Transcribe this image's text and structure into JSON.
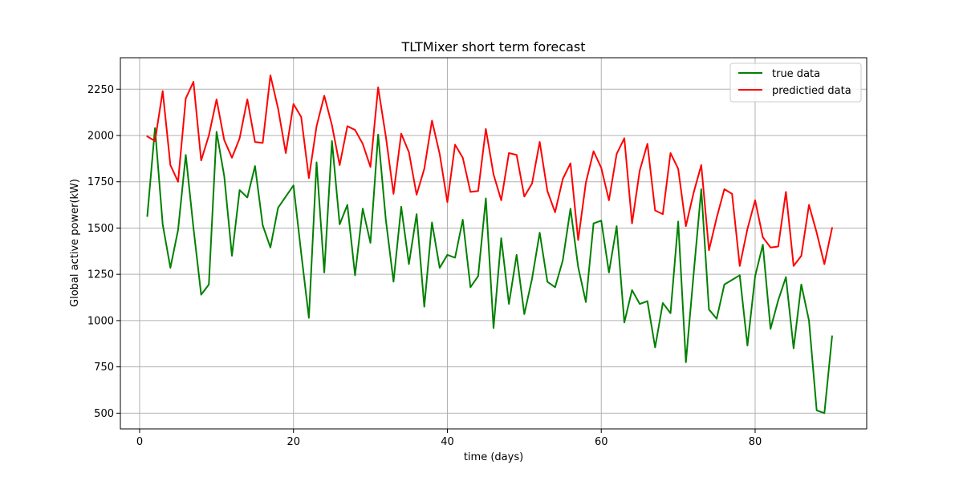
{
  "chart_data": {
    "type": "line",
    "title": "TLTMixer short term forecast",
    "xlabel": "time (days)",
    "ylabel": "Global active power(kW)",
    "xlim": [
      -2.5,
      94.5
    ],
    "ylim": [
      415,
      2420
    ],
    "xticks": [
      0,
      20,
      40,
      60,
      80
    ],
    "yticks": [
      500,
      750,
      1000,
      1250,
      1500,
      1750,
      2000,
      2250
    ],
    "grid": true,
    "legend_position": "top-right",
    "x": [
      1,
      2,
      3,
      4,
      5,
      6,
      7,
      8,
      9,
      10,
      11,
      12,
      13,
      14,
      15,
      16,
      17,
      18,
      19,
      20,
      21,
      22,
      23,
      24,
      25,
      26,
      27,
      28,
      29,
      30,
      31,
      32,
      33,
      34,
      35,
      36,
      37,
      38,
      39,
      40,
      41,
      42,
      43,
      44,
      45,
      46,
      47,
      48,
      49,
      50,
      51,
      52,
      53,
      54,
      55,
      56,
      57,
      58,
      59,
      60,
      61,
      62,
      63,
      64,
      65,
      66,
      67,
      68,
      69,
      70,
      71,
      72,
      73,
      74,
      75,
      76,
      77,
      78,
      79,
      80,
      81,
      82,
      83,
      84,
      85,
      86,
      87,
      88,
      89,
      90
    ],
    "series": [
      {
        "name": "true data",
        "color": "#008000",
        "values": [
          1565,
          2040,
          1520,
          1285,
          1490,
          1895,
          1500,
          1140,
          1195,
          2020,
          1780,
          1350,
          1705,
          1665,
          1835,
          1515,
          1395,
          1610,
          1670,
          1730,
          1365,
          1015,
          1855,
          1260,
          1970,
          1520,
          1625,
          1245,
          1605,
          1420,
          2005,
          1545,
          1210,
          1615,
          1305,
          1575,
          1075,
          1530,
          1285,
          1355,
          1340,
          1545,
          1180,
          1240,
          1660,
          960,
          1445,
          1090,
          1355,
          1035,
          1225,
          1475,
          1210,
          1180,
          1325,
          1605,
          1290,
          1100,
          1525,
          1540,
          1260,
          1510,
          990,
          1165,
          1090,
          1105,
          855,
          1095,
          1040,
          1535,
          775,
          1250,
          1710,
          1060,
          1010,
          1195,
          1220,
          1245,
          865,
          1240,
          1410,
          955,
          1110,
          1235,
          850,
          1195,
          1000,
          515,
          500,
          915
        ]
      },
      {
        "name": "predictied data",
        "color": "#ff0000",
        "values": [
          1995,
          1970,
          2240,
          1840,
          1750,
          2200,
          2290,
          1865,
          2000,
          2195,
          1975,
          1880,
          1985,
          2195,
          1965,
          1960,
          2325,
          2145,
          1905,
          2170,
          2100,
          1770,
          2050,
          2215,
          2055,
          1840,
          2050,
          2030,
          1955,
          1830,
          2260,
          1995,
          1685,
          2010,
          1910,
          1680,
          1820,
          2080,
          1900,
          1640,
          1950,
          1880,
          1695,
          1700,
          2035,
          1790,
          1650,
          1905,
          1895,
          1670,
          1740,
          1965,
          1700,
          1585,
          1765,
          1850,
          1435,
          1745,
          1915,
          1825,
          1650,
          1900,
          1985,
          1525,
          1810,
          1955,
          1595,
          1575,
          1905,
          1820,
          1510,
          1690,
          1840,
          1380,
          1555,
          1710,
          1685,
          1295,
          1495,
          1650,
          1450,
          1395,
          1400,
          1695,
          1295,
          1350,
          1625,
          1475,
          1305,
          1500
        ]
      }
    ]
  }
}
